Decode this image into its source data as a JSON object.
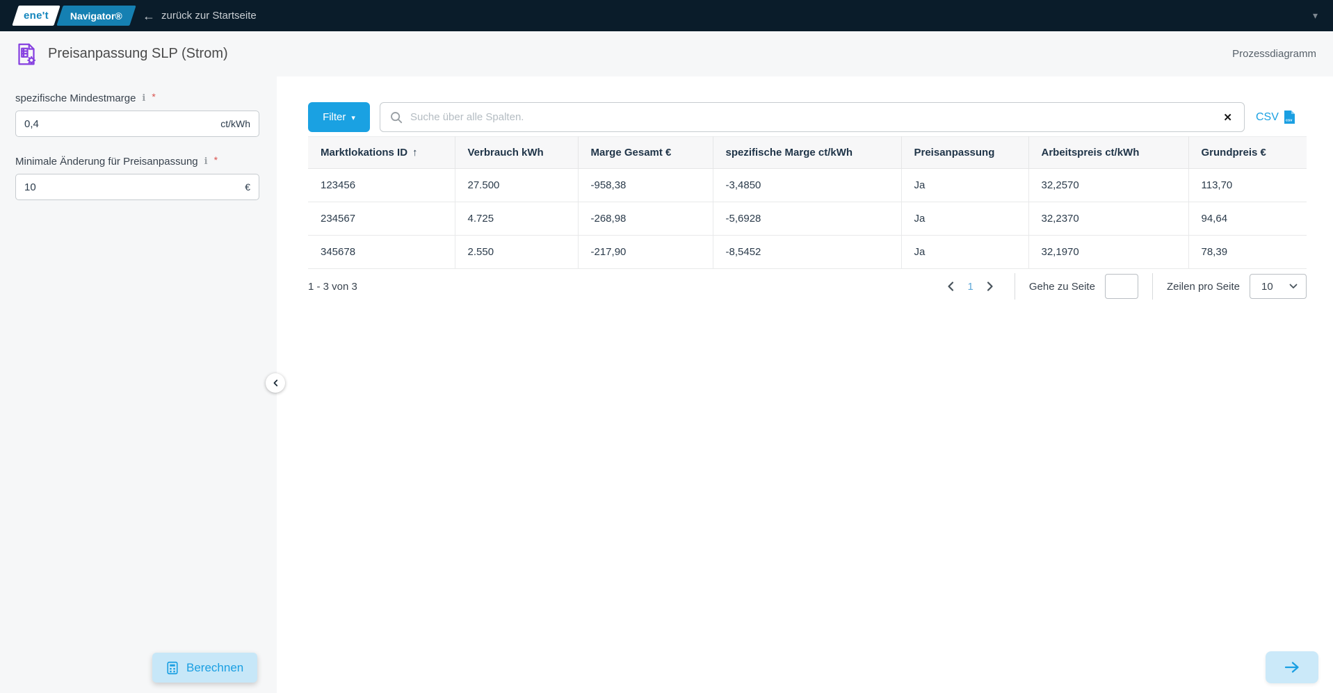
{
  "topbar": {
    "logo_primary": "ene't",
    "logo_secondary": "Navigator®",
    "back_label": "zurück zur Startseite"
  },
  "header": {
    "title": "Preisanpassung SLP (Strom)",
    "process_link": "Prozessdiagramm"
  },
  "sidebar": {
    "fields": [
      {
        "label": "spezifische Mindestmarge",
        "value": "0,4",
        "unit": "ct/kWh",
        "required_marker": "*"
      },
      {
        "label": "Minimale Änderung für Preisanpassung",
        "value": "10",
        "unit": "€",
        "required_marker": "*"
      }
    ],
    "calculate_label": "Berechnen"
  },
  "toolbar": {
    "filter_label": "Filter",
    "search_placeholder": "Suche über alle Spalten.",
    "search_value": "",
    "csv_label": "CSV"
  },
  "table": {
    "columns": [
      "Marktlokations ID",
      "Verbrauch kWh",
      "Marge Gesamt €",
      "spezifische Marge ct/kWh",
      "Preisanpassung",
      "Arbeitspreis ct/kWh",
      "Grundpreis €"
    ],
    "sorted_column": "Marktlokations ID",
    "sort_arrow": "↑",
    "rows": [
      [
        "123456",
        "27.500",
        "-958,38",
        "-3,4850",
        "Ja",
        "32,2570",
        "113,70"
      ],
      [
        "234567",
        "4.725",
        "-268,98",
        "-5,6928",
        "Ja",
        "32,2370",
        "94,64"
      ],
      [
        "345678",
        "2.550",
        "-217,90",
        "-8,5452",
        "Ja",
        "32,1970",
        "78,39"
      ]
    ]
  },
  "pagination": {
    "range_text": "1 - 3 von 3",
    "current_page": "1",
    "goto_label": "Gehe zu Seite",
    "goto_value": "",
    "rows_per_page_label": "Zeilen pro Seite",
    "rows_per_page_value": "10"
  },
  "icons": {
    "back": "←",
    "caret_down": "▾",
    "clear": "✕",
    "info": "i"
  },
  "colors": {
    "accent": "#1AA1E2",
    "topbar_bg": "#0A1C2A",
    "header_bg": "#F6F7F8",
    "icon_purple": "#8640E0",
    "required_red": "#D9534F",
    "button_light_blue": "#C7E7F8"
  }
}
